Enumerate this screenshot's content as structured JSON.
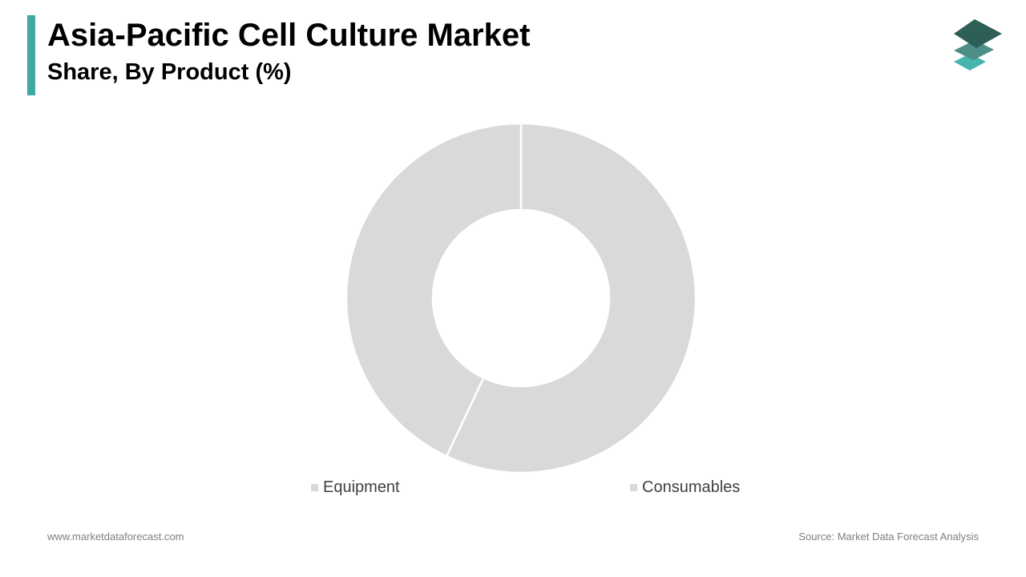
{
  "header": {
    "title": "Asia-Pacific Cell Culture Market",
    "subtitle": "Share, By Product (%)"
  },
  "colors": {
    "accent": "#3fa9a2",
    "slice": "#d9d9d9",
    "logo_top": "#2e5e58",
    "logo_mid": "#4f8e87",
    "logo_bottom": "#45b5ad"
  },
  "logo": {
    "icon": "stacked-layers-icon"
  },
  "chart_data": {
    "type": "pie",
    "donut": true,
    "categories": [
      "Equipment",
      "Consumables"
    ],
    "values": [
      43,
      57
    ],
    "legend_position": "bottom"
  },
  "footer": {
    "website": "www.marketdataforecast.com",
    "source": "Source: Market Data Forecast Analysis"
  }
}
